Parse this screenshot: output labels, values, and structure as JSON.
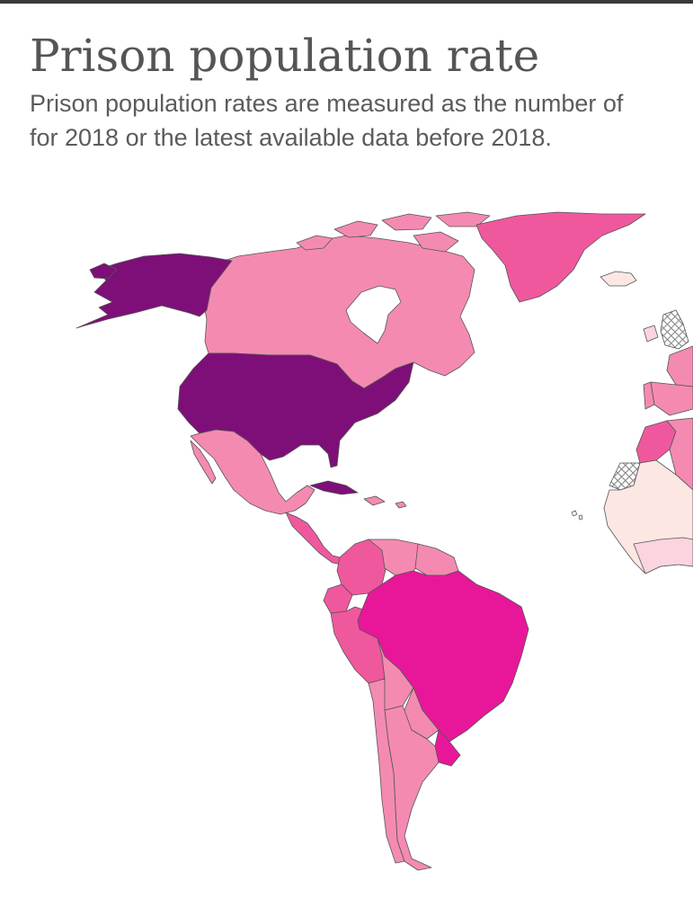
{
  "title": "Prison population rate",
  "subtitle": {
    "line1": "Prison population rates are measured as the number of",
    "line2": "for 2018 or the latest available data before 2018."
  },
  "map": {
    "region_shown": "Americas, western Europe and northwest Africa",
    "palette": {
      "very_high": "#7e0f78",
      "high": "#e8179a",
      "mid_high": "#f0589e",
      "mid": "#f48ab2",
      "low_mid": "#f7a8c4",
      "low": "#fbd4df",
      "very_low": "#fde7e3",
      "no_data": "#ffffff"
    },
    "countries": [
      {
        "name": "Alaska (United States)",
        "color": "very_high"
      },
      {
        "name": "United States",
        "color": "very_high"
      },
      {
        "name": "Canada",
        "color": "mid"
      },
      {
        "name": "Greenland",
        "color": "mid_high"
      },
      {
        "name": "Iceland",
        "color": "very_low"
      },
      {
        "name": "Mexico",
        "color": "mid"
      },
      {
        "name": "Cuba",
        "color": "very_high"
      },
      {
        "name": "Central America",
        "color": "mid_high"
      },
      {
        "name": "Colombia",
        "color": "mid_high"
      },
      {
        "name": "Venezuela",
        "color": "mid"
      },
      {
        "name": "Guyana",
        "color": "mid"
      },
      {
        "name": "Suriname",
        "color": "mid"
      },
      {
        "name": "Ecuador",
        "color": "mid_high"
      },
      {
        "name": "Peru",
        "color": "mid_high"
      },
      {
        "name": "Brazil",
        "color": "high"
      },
      {
        "name": "Bolivia",
        "color": "mid"
      },
      {
        "name": "Paraguay",
        "color": "mid"
      },
      {
        "name": "Chile",
        "color": "mid"
      },
      {
        "name": "Argentina",
        "color": "mid"
      },
      {
        "name": "Uruguay",
        "color": "high"
      },
      {
        "name": "Ireland",
        "color": "low"
      },
      {
        "name": "Spain",
        "color": "mid"
      },
      {
        "name": "Portugal",
        "color": "mid"
      },
      {
        "name": "France",
        "color": "mid"
      },
      {
        "name": "Morocco",
        "color": "mid_high"
      },
      {
        "name": "Algeria",
        "color": "mid"
      },
      {
        "name": "Western Sahara",
        "color": "no_data"
      },
      {
        "name": "West Africa",
        "color": "very_low"
      }
    ]
  }
}
